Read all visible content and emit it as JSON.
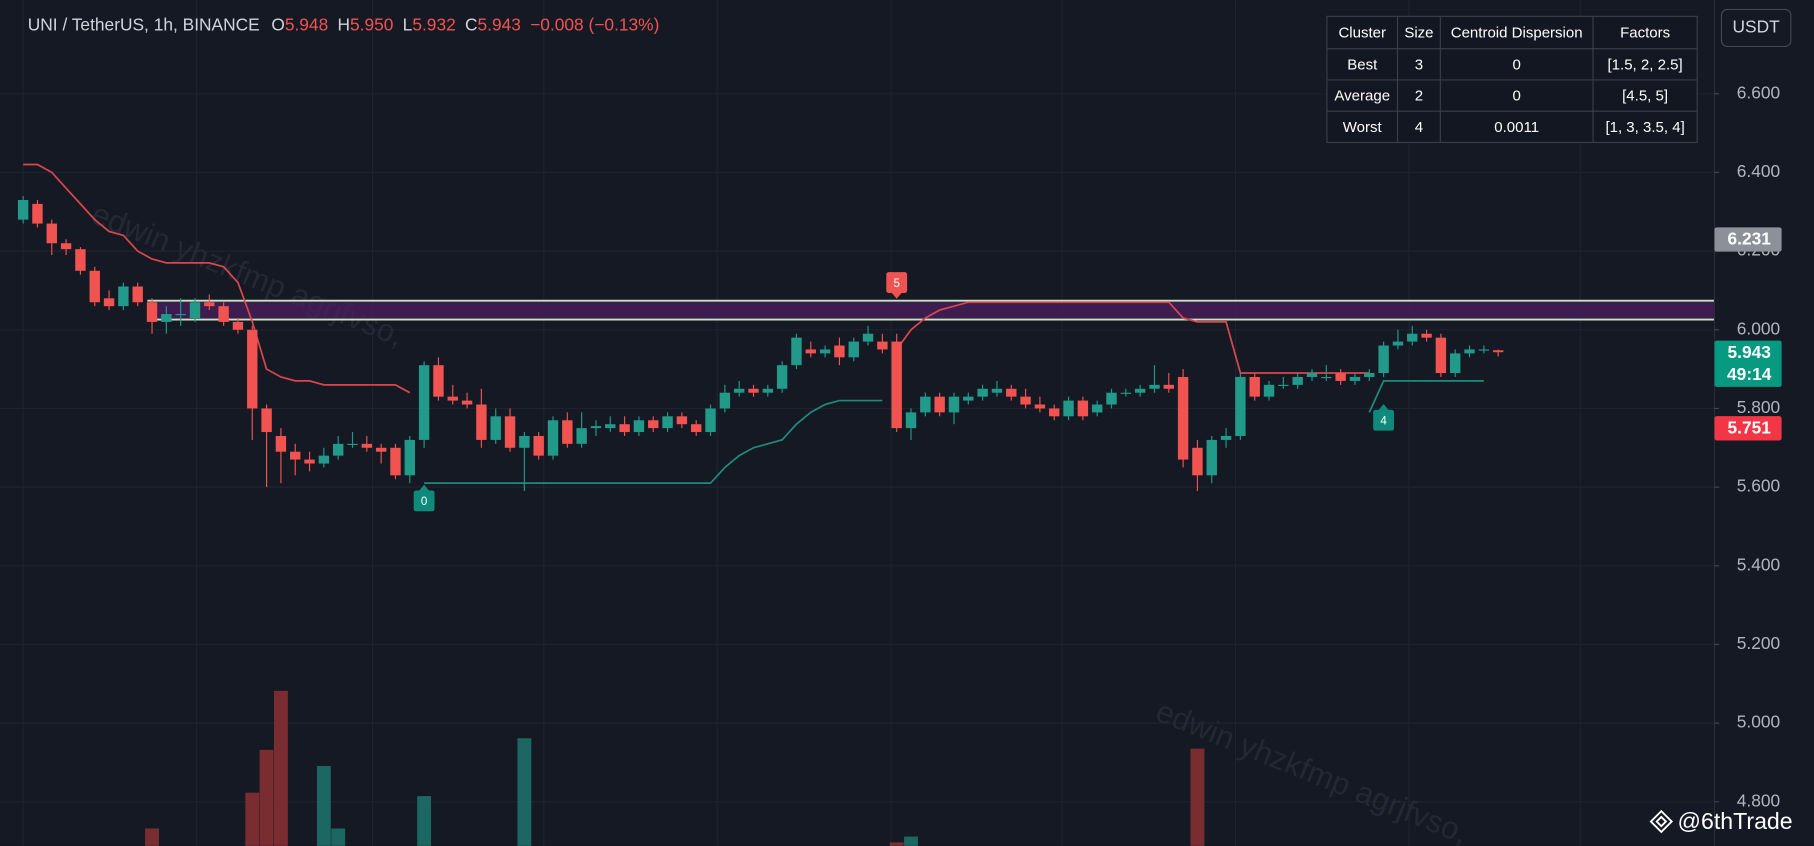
{
  "chart_data": {
    "type": "candlestick",
    "legend": {
      "symbol": "UNI / TetherUS, 1h, BINANCE",
      "ohlc": [
        {
          "key": "O",
          "value": "5.948"
        },
        {
          "key": "H",
          "value": "5.950"
        },
        {
          "key": "L",
          "value": "5.932"
        },
        {
          "key": "C",
          "value": "5.943"
        }
      ],
      "change": "−0.008 (−0.13%)"
    },
    "currency": "USDT",
    "up_color": "#229a8a",
    "down_color": "#f05350",
    "open": [
      6.28,
      6.32,
      6.27,
      6.22,
      6.205,
      6.15,
      6.08,
      6.06,
      6.11,
      6.07,
      6.02,
      6.04,
      6.03,
      6.07,
      6.06,
      6.02,
      6.0,
      5.8,
      5.73,
      5.69,
      5.67,
      5.66,
      5.68,
      5.71,
      5.71,
      5.7,
      5.7,
      5.63,
      5.72,
      5.91,
      5.83,
      5.82,
      5.81,
      5.72,
      5.78,
      5.7,
      5.73,
      5.68,
      5.77,
      5.71,
      5.75,
      5.75,
      5.76,
      5.74,
      5.77,
      5.75,
      5.78,
      5.76,
      5.74,
      5.8,
      5.84,
      5.85,
      5.84,
      5.85,
      5.91,
      5.95,
      5.94,
      5.96,
      5.93,
      5.97,
      5.97,
      5.97,
      5.75,
      5.79,
      5.83,
      5.79,
      5.82,
      5.83,
      5.84,
      5.85,
      5.83,
      5.81,
      5.8,
      5.78,
      5.82,
      5.79,
      5.81,
      5.84,
      5.84,
      5.85,
      5.86,
      5.88,
      5.7,
      5.63,
      5.72,
      5.73,
      5.88,
      5.83,
      5.86,
      5.86,
      5.88,
      5.88,
      5.89,
      5.87,
      5.88,
      5.89,
      5.96,
      5.97,
      5.99,
      5.98,
      5.89,
      5.94,
      5.95,
      5.948
    ],
    "high": [
      6.34,
      6.33,
      6.28,
      6.23,
      6.21,
      6.16,
      6.1,
      6.12,
      6.12,
      6.08,
      6.06,
      6.08,
      6.08,
      6.09,
      6.07,
      6.03,
      6.01,
      5.81,
      5.75,
      5.71,
      5.69,
      5.7,
      5.73,
      5.74,
      5.73,
      5.71,
      5.71,
      5.73,
      5.92,
      5.93,
      5.86,
      5.84,
      5.85,
      5.8,
      5.8,
      5.74,
      5.74,
      5.78,
      5.79,
      5.79,
      5.77,
      5.78,
      5.78,
      5.78,
      5.78,
      5.79,
      5.79,
      5.77,
      5.81,
      5.86,
      5.87,
      5.86,
      5.86,
      5.92,
      5.99,
      5.97,
      5.96,
      5.98,
      5.98,
      6.01,
      5.99,
      5.99,
      5.8,
      5.84,
      5.84,
      5.84,
      5.84,
      5.86,
      5.87,
      5.86,
      5.85,
      5.83,
      5.81,
      5.83,
      5.83,
      5.82,
      5.85,
      5.85,
      5.86,
      5.91,
      5.89,
      5.9,
      5.72,
      5.73,
      5.75,
      5.89,
      5.89,
      5.87,
      5.88,
      5.89,
      5.9,
      5.91,
      5.9,
      5.89,
      5.9,
      5.97,
      6.0,
      6.01,
      6.0,
      5.99,
      5.95,
      5.96,
      5.96,
      5.95
    ],
    "low": [
      6.27,
      6.26,
      6.19,
      6.19,
      6.14,
      6.06,
      6.05,
      6.05,
      6.06,
      5.99,
      5.99,
      6.01,
      6.02,
      6.05,
      6.01,
      5.99,
      5.72,
      5.6,
      5.61,
      5.63,
      5.64,
      5.65,
      5.67,
      5.7,
      5.69,
      5.66,
      5.62,
      5.61,
      5.7,
      5.82,
      5.81,
      5.8,
      5.7,
      5.71,
      5.69,
      5.59,
      5.67,
      5.67,
      5.7,
      5.7,
      5.73,
      5.74,
      5.73,
      5.73,
      5.74,
      5.74,
      5.75,
      5.73,
      5.73,
      5.79,
      5.83,
      5.83,
      5.83,
      5.84,
      5.9,
      5.93,
      5.93,
      5.91,
      5.92,
      5.96,
      5.94,
      5.74,
      5.72,
      5.78,
      5.78,
      5.76,
      5.81,
      5.82,
      5.83,
      5.82,
      5.8,
      5.79,
      5.77,
      5.77,
      5.77,
      5.78,
      5.8,
      5.83,
      5.83,
      5.84,
      5.84,
      5.65,
      5.59,
      5.61,
      5.7,
      5.72,
      5.82,
      5.82,
      5.85,
      5.85,
      5.87,
      5.87,
      5.86,
      5.86,
      5.87,
      5.88,
      5.95,
      5.96,
      5.97,
      5.88,
      5.88,
      5.93,
      5.94,
      5.932
    ],
    "close": [
      6.33,
      6.27,
      6.22,
      6.205,
      6.15,
      6.07,
      6.06,
      6.11,
      6.07,
      6.02,
      6.04,
      6.04,
      6.07,
      6.06,
      6.02,
      6.0,
      5.8,
      5.74,
      5.69,
      5.67,
      5.66,
      5.68,
      5.71,
      5.71,
      5.7,
      5.69,
      5.63,
      5.72,
      5.91,
      5.83,
      5.82,
      5.81,
      5.72,
      5.78,
      5.7,
      5.73,
      5.68,
      5.77,
      5.71,
      5.75,
      5.755,
      5.76,
      5.74,
      5.77,
      5.75,
      5.78,
      5.76,
      5.74,
      5.8,
      5.84,
      5.85,
      5.84,
      5.85,
      5.91,
      5.98,
      5.94,
      5.95,
      5.93,
      5.97,
      5.99,
      5.95,
      5.75,
      5.79,
      5.83,
      5.79,
      5.83,
      5.83,
      5.85,
      5.85,
      5.83,
      5.81,
      5.8,
      5.78,
      5.82,
      5.78,
      5.81,
      5.84,
      5.84,
      5.85,
      5.86,
      5.85,
      5.67,
      5.63,
      5.72,
      5.73,
      5.88,
      5.83,
      5.86,
      5.86,
      5.88,
      5.89,
      5.88,
      5.87,
      5.88,
      5.89,
      5.96,
      5.97,
      5.99,
      5.98,
      5.89,
      5.94,
      5.95,
      5.95,
      5.943
    ],
    "volume": [
      null,
      null,
      null,
      null,
      null,
      null,
      null,
      null,
      null,
      15,
      null,
      null,
      null,
      null,
      null,
      null,
      46,
      83,
      134,
      null,
      null,
      69,
      15,
      null,
      null,
      null,
      null,
      null,
      43,
      null,
      null,
      null,
      null,
      null,
      null,
      93,
      null,
      null,
      null,
      null,
      null,
      null,
      null,
      null,
      null,
      null,
      null,
      null,
      null,
      null,
      null,
      null,
      null,
      null,
      null,
      null,
      null,
      null,
      null,
      null,
      null,
      3,
      8,
      null,
      null,
      null,
      null,
      null,
      null,
      null,
      null,
      null,
      null,
      null,
      null,
      null,
      null,
      null,
      null,
      null,
      null,
      null,
      84,
      null,
      null,
      null,
      null,
      null,
      null,
      null,
      null,
      null,
      null,
      null,
      null,
      null,
      null,
      null,
      null,
      null,
      null,
      null,
      null,
      null
    ],
    "series": [
      {
        "name": "upper",
        "color": "#d9474c",
        "values": [
          6.42,
          6.42,
          6.4,
          6.36,
          6.32,
          6.28,
          6.25,
          6.24,
          6.2,
          6.18,
          6.17,
          6.17,
          6.17,
          6.17,
          6.16,
          6.12,
          6.02,
          5.9,
          5.88,
          5.87,
          5.87,
          5.86,
          5.86,
          5.86,
          5.86,
          5.86,
          5.86,
          5.84,
          null,
          null,
          null,
          null,
          null,
          null,
          null,
          null,
          null,
          null,
          null,
          null,
          null,
          null,
          null,
          null,
          null,
          null,
          null,
          null,
          null,
          null,
          null,
          null,
          null,
          null,
          null,
          null,
          null,
          null,
          null,
          null,
          null,
          5.95,
          6.0,
          6.03,
          6.05,
          6.06,
          6.07,
          6.07,
          6.07,
          6.07,
          6.07,
          6.07,
          6.07,
          6.07,
          6.07,
          6.07,
          6.07,
          6.07,
          6.07,
          6.07,
          6.07,
          6.03,
          6.02,
          6.02,
          6.02,
          5.89,
          5.89,
          5.89,
          5.89,
          5.89,
          5.89,
          5.89,
          5.89,
          5.89,
          5.89,
          null,
          null,
          null,
          null,
          null,
          null,
          null,
          null,
          null
        ]
      },
      {
        "name": "lower",
        "color": "#1e8a7c",
        "values": [
          null,
          null,
          null,
          null,
          null,
          null,
          null,
          null,
          null,
          null,
          null,
          null,
          null,
          null,
          null,
          null,
          null,
          null,
          null,
          null,
          null,
          null,
          null,
          null,
          null,
          null,
          null,
          null,
          5.61,
          5.61,
          5.61,
          5.61,
          5.61,
          5.61,
          5.61,
          5.61,
          5.61,
          5.61,
          5.61,
          5.61,
          5.61,
          5.61,
          5.61,
          5.61,
          5.61,
          5.61,
          5.61,
          5.61,
          5.61,
          5.65,
          5.68,
          5.7,
          5.71,
          5.72,
          5.76,
          5.79,
          5.81,
          5.82,
          5.82,
          5.82,
          5.82,
          null,
          null,
          null,
          null,
          null,
          null,
          null,
          null,
          null,
          null,
          null,
          null,
          null,
          null,
          null,
          null,
          null,
          null,
          null,
          null,
          null,
          null,
          null,
          null,
          null,
          null,
          null,
          null,
          null,
          null,
          null,
          null,
          null,
          5.79,
          5.87,
          5.87,
          5.87,
          5.87,
          5.87,
          5.87,
          5.87,
          5.87
        ]
      }
    ],
    "zone": [
      6.026,
      6.074
    ],
    "zone_start": 9,
    "annotations": [
      {
        "index": 61,
        "value": 6.12,
        "label": "5",
        "side": "above",
        "color": "#f05350"
      },
      {
        "index": 28,
        "value": 5.565,
        "label": "0",
        "side": "below",
        "color": "#0e8a7a"
      },
      {
        "index": 95,
        "value": 5.77,
        "label": "4",
        "side": "below",
        "color": "#0e8a7a"
      }
    ],
    "ylim": [
      4.688,
      6.838
    ],
    "yticks": [
      {
        "value": 4.8,
        "label": "4.800"
      },
      {
        "value": 5.0,
        "label": "5.000"
      },
      {
        "value": 5.2,
        "label": "5.200"
      },
      {
        "value": 5.4,
        "label": "5.400"
      },
      {
        "value": 5.6,
        "label": "5.600"
      },
      {
        "value": 5.8,
        "label": "5.800"
      },
      {
        "value": 6.0,
        "label": "6.000"
      },
      {
        "value": 6.2,
        "label": "6.200"
      },
      {
        "value": 6.4,
        "label": "6.400"
      },
      {
        "value": 6.6,
        "label": "6.600"
      }
    ],
    "grid": true,
    "price_tags": [
      {
        "value": 6.231,
        "color": "#8d9099"
      },
      {
        "value": 5.943,
        "color": "#089981",
        "timer": "49:14"
      },
      {
        "value": 5.751,
        "color": "#f23645"
      }
    ],
    "table": {
      "columns": [
        "Cluster",
        "Size",
        "Centroid Dispersion",
        "Factors"
      ],
      "rows": [
        [
          "Best",
          "3",
          "0",
          "[1.5, 2, 2.5]"
        ],
        [
          "Average",
          "2",
          "0",
          "[4.5, 5]"
        ],
        [
          "Worst",
          "4",
          "0.0011",
          "[1, 3, 3.5, 4]"
        ]
      ]
    },
    "watermark": "edwin yhzkfmp agrjfvso,",
    "brand": "@6thTrade"
  }
}
